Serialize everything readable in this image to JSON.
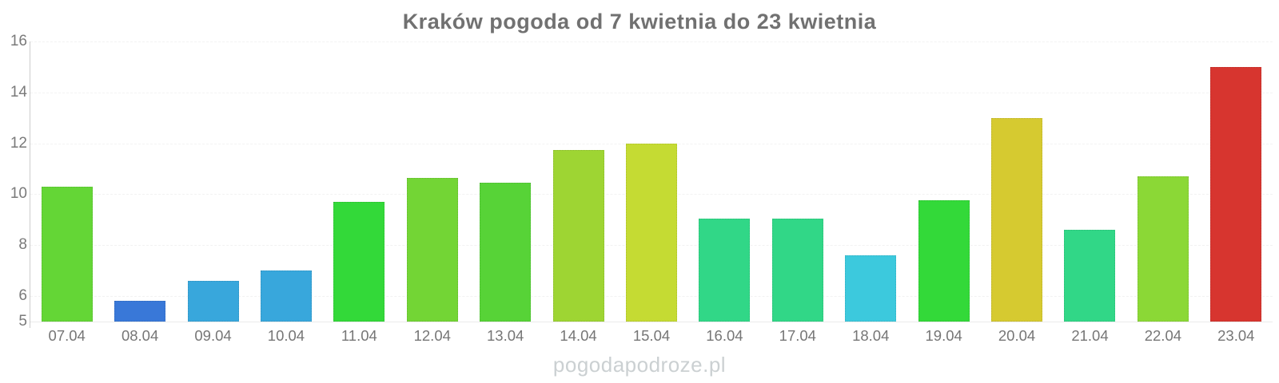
{
  "title": "Kraków pogoda od 7 kwietnia do 23 kwietnia",
  "watermark": "pogodapodroze.pl",
  "chart_data": {
    "type": "bar",
    "title": "Kraków pogoda od 7 kwietnia do 23 kwietnia",
    "xlabel": "",
    "ylabel": "",
    "categories": [
      "07.04",
      "08.04",
      "09.04",
      "10.04",
      "11.04",
      "12.04",
      "13.04",
      "14.04",
      "15.04",
      "16.04",
      "17.04",
      "18.04",
      "19.04",
      "20.04",
      "21.04",
      "22.04",
      "23.04"
    ],
    "values": [
      10.3,
      5.8,
      6.6,
      7.0,
      9.7,
      10.65,
      10.45,
      11.75,
      12.0,
      9.05,
      9.05,
      7.6,
      9.75,
      13.0,
      8.6,
      10.7,
      15.0
    ],
    "bar_colors": [
      "#64d636",
      "#3978d8",
      "#38a7dc",
      "#38a7dc",
      "#33d939",
      "#73d535",
      "#57d337",
      "#9ed533",
      "#c5db33",
      "#31d787",
      "#31d787",
      "#3cc9dd",
      "#33d939",
      "#d6ca30",
      "#31d787",
      "#8bd836",
      "#d7352f"
    ],
    "ylim": [
      5,
      16
    ],
    "yticks": [
      5,
      6,
      8,
      10,
      12,
      14,
      16
    ],
    "grid": true,
    "legend": "none",
    "colors": {
      "axis_line": "#cccccc",
      "grid_line": "#f2f2f2",
      "base_line": "#ebebeb",
      "tick_label": "#7a7a7a",
      "title_text": "#717171",
      "watermark_text": "#cbd0d2"
    }
  }
}
